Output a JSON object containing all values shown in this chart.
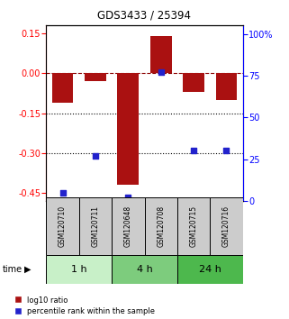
{
  "title": "GDS3433 / 25394",
  "samples": [
    "GSM120710",
    "GSM120711",
    "GSM120648",
    "GSM120708",
    "GSM120715",
    "GSM120716"
  ],
  "log10_ratio": [
    -0.11,
    -0.03,
    -0.42,
    0.14,
    -0.07,
    -0.1
  ],
  "percentile_rank": [
    5,
    27,
    2,
    77,
    30,
    30
  ],
  "time_groups": [
    {
      "label": "1 h",
      "samples": [
        0,
        1
      ],
      "color": "#c8f0c8"
    },
    {
      "label": "4 h",
      "samples": [
        2,
        3
      ],
      "color": "#7dcc7d"
    },
    {
      "label": "24 h",
      "samples": [
        4,
        5
      ],
      "color": "#4db84d"
    }
  ],
  "bar_color": "#aa1111",
  "dot_color": "#2222cc",
  "ylim_left": [
    -0.48,
    0.18
  ],
  "ylim_right": [
    0,
    105
  ],
  "yticks_left": [
    0.15,
    0.0,
    -0.15,
    -0.3,
    -0.45
  ],
  "yticks_right": [
    100,
    75,
    50,
    25,
    0
  ],
  "hlines": [
    0,
    -0.15,
    -0.3
  ],
  "bar_width": 0.65,
  "figsize": [
    3.21,
    3.54
  ],
  "dpi": 100
}
